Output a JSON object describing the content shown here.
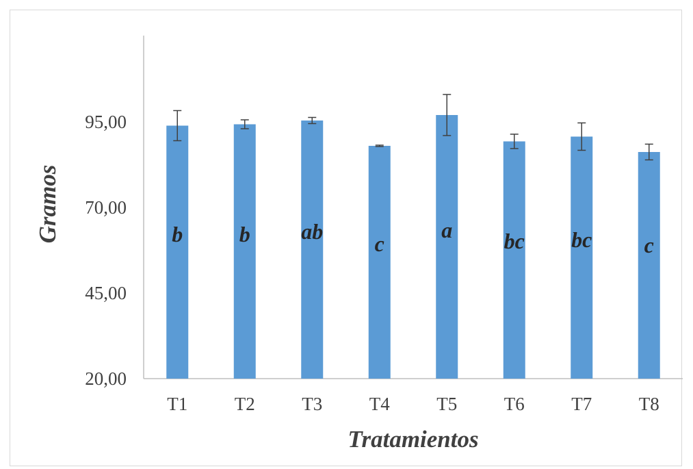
{
  "chart_data": {
    "type": "bar",
    "title": "",
    "xlabel": "Tratamientos",
    "ylabel": "Gramos",
    "ylim": [
      20,
      117
    ],
    "yticks": [
      20,
      45,
      70,
      95
    ],
    "ytick_labels": [
      "20,00",
      "45,00",
      "70,00",
      "95,00"
    ],
    "categories": [
      "T1",
      "T2",
      "T3",
      "T4",
      "T5",
      "T6",
      "T7",
      "T8"
    ],
    "values": [
      93.9,
      94.3,
      95.4,
      88.0,
      97.0,
      89.3,
      90.7,
      86.2
    ],
    "error": [
      4.4,
      1.3,
      0.9,
      0.2,
      6.0,
      2.1,
      4.0,
      2.3
    ],
    "significance": [
      "b",
      "b",
      "ab",
      "c",
      "a",
      "bc",
      "bc",
      "c"
    ],
    "grid": false,
    "legend": "none",
    "bar_color": "#5b9bd5",
    "errorbar_color": "#404040"
  }
}
